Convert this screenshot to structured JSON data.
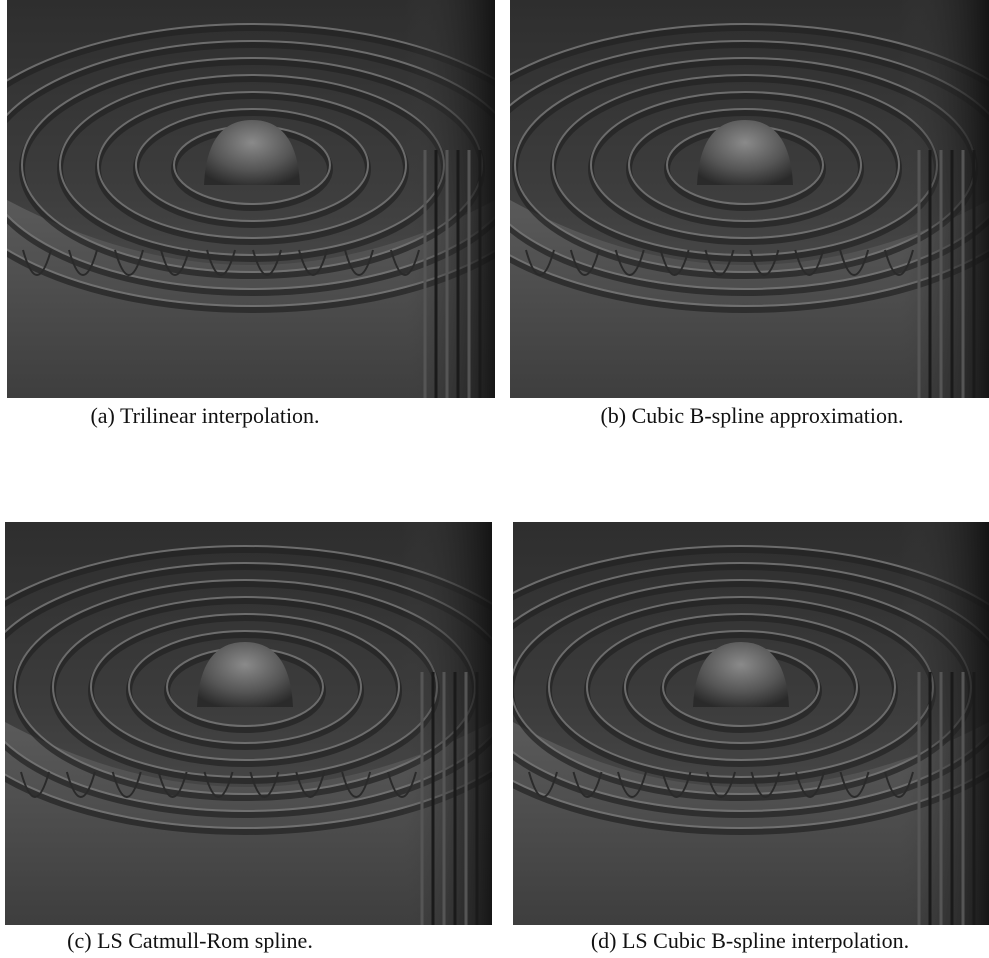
{
  "figure": {
    "panels": [
      {
        "caption": "(a) Trilinear interpolation."
      },
      {
        "caption": "(b) Cubic B-spline approximation."
      },
      {
        "caption": "(c) LS Catmull-Rom spline."
      },
      {
        "caption": "(d) LS Cubic B-spline interpolation."
      }
    ]
  }
}
